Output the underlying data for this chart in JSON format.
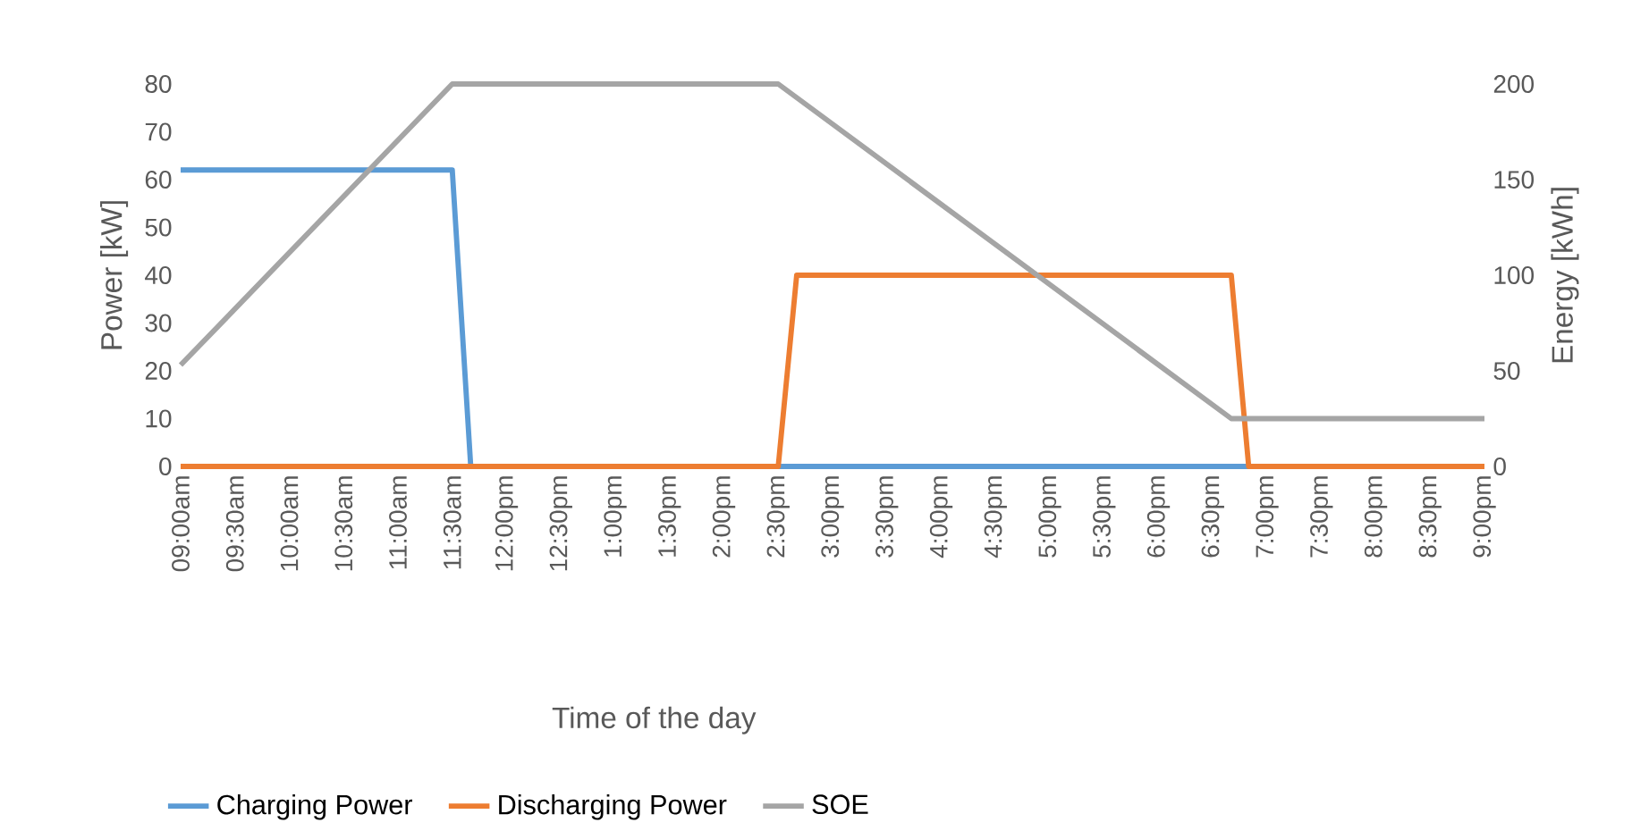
{
  "chart_data": {
    "type": "line",
    "xlabel": "Time of the day",
    "ylabel": "Power [kW]",
    "y2label": "Energy [kWh]",
    "xlim": [
      9,
      21
    ],
    "xticks": [
      {
        "value": 9,
        "label": "09:00am"
      },
      {
        "value": 9.5,
        "label": "09:30am"
      },
      {
        "value": 10,
        "label": "10:00am"
      },
      {
        "value": 10.5,
        "label": "10:30am"
      },
      {
        "value": 11,
        "label": "11:00am"
      },
      {
        "value": 11.5,
        "label": "11:30am"
      },
      {
        "value": 12,
        "label": "12:00pm"
      },
      {
        "value": 12.5,
        "label": "12:30pm"
      },
      {
        "value": 13,
        "label": "1:00pm"
      },
      {
        "value": 13.5,
        "label": "1:30pm"
      },
      {
        "value": 14,
        "label": "2:00pm"
      },
      {
        "value": 14.5,
        "label": "2:30pm"
      },
      {
        "value": 15,
        "label": "3:00pm"
      },
      {
        "value": 15.5,
        "label": "3:30pm"
      },
      {
        "value": 16,
        "label": "4:00pm"
      },
      {
        "value": 16.5,
        "label": "4:30pm"
      },
      {
        "value": 17,
        "label": "5:00pm"
      },
      {
        "value": 17.5,
        "label": "5:30pm"
      },
      {
        "value": 18,
        "label": "6:00pm"
      },
      {
        "value": 18.5,
        "label": "6:30pm"
      },
      {
        "value": 19,
        "label": "7:00pm"
      },
      {
        "value": 19.5,
        "label": "7:30pm"
      },
      {
        "value": 20,
        "label": "8:00pm"
      },
      {
        "value": 20.5,
        "label": "8:30pm"
      },
      {
        "value": 21,
        "label": "9:00pm"
      }
    ],
    "ylim": [
      0,
      80
    ],
    "yticks": [
      0,
      10,
      20,
      30,
      40,
      50,
      60,
      70,
      80
    ],
    "y2lim": [
      0,
      200
    ],
    "y2ticks": [
      0,
      50,
      100,
      150,
      200
    ],
    "legend": "bottom",
    "grid": false,
    "marker": "none",
    "line_style": "solid",
    "series": [
      {
        "name": "Charging Power",
        "color": "#5b9bd5",
        "x": [
          9,
          11.5,
          11.67,
          18.83
        ],
        "values": [
          62,
          62,
          0,
          0
        ]
      },
      {
        "name": "Discharging Power",
        "color": "#ed7d31",
        "x": [
          9,
          14.5,
          14.67,
          18.67,
          18.83,
          21
        ],
        "values": [
          0,
          0,
          40,
          40,
          0,
          0
        ]
      },
      {
        "name": "SOE",
        "color": "#a5a5a5",
        "axis": "y2",
        "x": [
          9,
          11.5,
          14.5,
          18.67,
          21
        ],
        "values": [
          53,
          200,
          200,
          25,
          25
        ]
      }
    ]
  }
}
